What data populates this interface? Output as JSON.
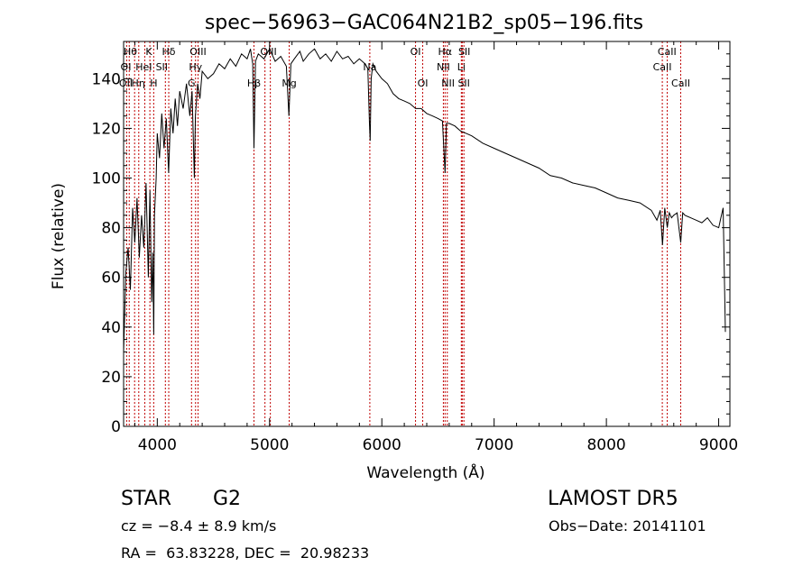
{
  "chart_data": {
    "type": "line",
    "title": "spec−56963−GAC064N21B2_sp05−196.fits",
    "xlabel": "Wavelength (Å)",
    "ylabel": "Flux (relative)",
    "xlim": [
      3700,
      9100
    ],
    "ylim": [
      0,
      155
    ],
    "xticks": [
      4000,
      5000,
      6000,
      7000,
      8000,
      9000
    ],
    "xtick_labels": [
      "4000",
      "5000",
      "6000",
      "7000",
      "8000",
      "9000"
    ],
    "yticks": [
      0,
      20,
      40,
      60,
      80,
      100,
      120,
      140
    ],
    "ytick_labels": [
      "0",
      "20",
      "40",
      "60",
      "80",
      "100",
      "120",
      "140"
    ],
    "grid": false,
    "legend": "none",
    "series": [
      {
        "x": [
          3700,
          3720,
          3740,
          3760,
          3780,
          3800,
          3820,
          3840,
          3860,
          3880,
          3900,
          3920,
          3935,
          3950,
          3960,
          3968,
          3975,
          3990,
          4000,
          4020,
          4040,
          4060,
          4080,
          4101,
          4120,
          4140,
          4160,
          4180,
          4200,
          4230,
          4260,
          4290,
          4310,
          4330,
          4340,
          4360,
          4380,
          4400,
          4450,
          4500,
          4550,
          4600,
          4650,
          4700,
          4750,
          4800,
          4830,
          4850,
          4861,
          4875,
          4900,
          4950,
          5000,
          5050,
          5100,
          5150,
          5172,
          5190,
          5220,
          5270,
          5300,
          5350,
          5400,
          5450,
          5500,
          5550,
          5600,
          5650,
          5700,
          5750,
          5800,
          5850,
          5875,
          5890,
          5896,
          5905,
          5920,
          5950,
          6000,
          6050,
          6100,
          6150,
          6200,
          6250,
          6300,
          6350,
          6400,
          6450,
          6500,
          6540,
          6563,
          6575,
          6600,
          6650,
          6700,
          6750,
          6800,
          6900,
          7000,
          7100,
          7200,
          7300,
          7400,
          7500,
          7600,
          7700,
          7800,
          7900,
          8000,
          8100,
          8200,
          8300,
          8400,
          8450,
          8480,
          8500,
          8520,
          8542,
          8560,
          8580,
          8600,
          8630,
          8662,
          8680,
          8700,
          8750,
          8800,
          8850,
          8900,
          8950,
          9000,
          9020,
          9040,
          9060
        ],
        "y": [
          30,
          62,
          72,
          55,
          88,
          74,
          92,
          68,
          85,
          72,
          98,
          60,
          95,
          50,
          70,
          37,
          85,
          100,
          118,
          108,
          126,
          112,
          124,
          102,
          128,
          118,
          132,
          121,
          135,
          128,
          138,
          125,
          135,
          100,
          125,
          138,
          132,
          143,
          140,
          142,
          146,
          144,
          148,
          145,
          150,
          148,
          152,
          146,
          112,
          147,
          150,
          148,
          152,
          147,
          149,
          145,
          125,
          146,
          148,
          151,
          147,
          150,
          152,
          148,
          150,
          147,
          151,
          148,
          149,
          146,
          148,
          146,
          144,
          122,
          115,
          140,
          146,
          143,
          140,
          138,
          134,
          132,
          131,
          130,
          128,
          128,
          126,
          125,
          124,
          123,
          102,
          122,
          122,
          121,
          119,
          118,
          117,
          114,
          112,
          110,
          108,
          106,
          104,
          101,
          100,
          98,
          97,
          96,
          94,
          92,
          91,
          90,
          87,
          83,
          87,
          73,
          88,
          80,
          86,
          84,
          85,
          86,
          74,
          86,
          85,
          84,
          83,
          82,
          84,
          81,
          80,
          84,
          88,
          38
        ]
      }
    ],
    "lines": [
      {
        "wavelength": 3727,
        "labels": [
          "OII"
        ]
      },
      {
        "wavelength": 3750,
        "labels": [
          "OII"
        ]
      },
      {
        "wavelength": 3798,
        "labels": [
          "Hθ"
        ]
      },
      {
        "wavelength": 3835,
        "labels": [
          "Hη"
        ]
      },
      {
        "wavelength": 3889,
        "labels": [
          "HeI"
        ]
      },
      {
        "wavelength": 3934,
        "labels": [
          "K"
        ]
      },
      {
        "wavelength": 3968,
        "labels": [
          "H"
        ]
      },
      {
        "wavelength": 4072,
        "labels": [
          "SII"
        ]
      },
      {
        "wavelength": 4102,
        "labels": [
          "Hδ"
        ]
      },
      {
        "wavelength": 4305,
        "labels": [
          "G"
        ]
      },
      {
        "wavelength": 4341,
        "labels": [
          "Hγ"
        ]
      },
      {
        "wavelength": 4363,
        "labels": [
          "OIII"
        ]
      },
      {
        "wavelength": 4861,
        "labels": [
          "Hβ"
        ]
      },
      {
        "wavelength": 4959,
        "labels": [
          "OIII"
        ]
      },
      {
        "wavelength": 5007,
        "labels": [
          "OIII"
        ]
      },
      {
        "wavelength": 5175,
        "labels": [
          "Mg"
        ]
      },
      {
        "wavelength": 5893,
        "labels": [
          "Na"
        ]
      },
      {
        "wavelength": 6300,
        "labels": [
          "OI"
        ]
      },
      {
        "wavelength": 6364,
        "labels": [
          "OI"
        ]
      },
      {
        "wavelength": 6548,
        "labels": [
          "NII"
        ]
      },
      {
        "wavelength": 6563,
        "labels": [
          "Hα"
        ]
      },
      {
        "wavelength": 6583,
        "labels": [
          "NII"
        ]
      },
      {
        "wavelength": 6708,
        "labels": [
          "Li"
        ]
      },
      {
        "wavelength": 6716,
        "labels": [
          "SII"
        ]
      },
      {
        "wavelength": 6731,
        "labels": [
          "SII"
        ]
      },
      {
        "wavelength": 8498,
        "labels": [
          "CaII"
        ]
      },
      {
        "wavelength": 8542,
        "labels": [
          "CaII"
        ]
      },
      {
        "wavelength": 8662,
        "labels": [
          "CaII"
        ]
      }
    ],
    "line_label_rows": [
      [
        {
          "text": "Hθ",
          "x": 3760
        },
        {
          "text": "K",
          "x": 3925
        },
        {
          "text": "Hδ",
          "x": 4102
        },
        {
          "text": "OIII",
          "x": 4363
        },
        {
          "text": "OIII",
          "x": 4990
        },
        {
          "text": "OI",
          "x": 6300
        },
        {
          "text": "Hα",
          "x": 6563
        },
        {
          "text": "SII",
          "x": 6735
        },
        {
          "text": "CaII",
          "x": 8540
        }
      ],
      [
        {
          "text": "OI",
          "x": 3720
        },
        {
          "text": "HeI",
          "x": 3880
        },
        {
          "text": "SII",
          "x": 4040
        },
        {
          "text": "Hγ",
          "x": 4341
        },
        {
          "text": "Na",
          "x": 5893
        },
        {
          "text": "NII",
          "x": 6548
        },
        {
          "text": "Li",
          "x": 6708
        },
        {
          "text": "CaII",
          "x": 8498
        }
      ],
      [
        {
          "text": "OII",
          "x": 3720
        },
        {
          "text": "Hη",
          "x": 3830
        },
        {
          "text": "H",
          "x": 3968
        },
        {
          "text": "G",
          "x": 4305
        },
        {
          "text": "Hβ",
          "x": 4861
        },
        {
          "text": "Mg",
          "x": 5175
        },
        {
          "text": "OI",
          "x": 6364
        },
        {
          "text": "NII",
          "x": 6590
        },
        {
          "text": "SII",
          "x": 6731
        },
        {
          "text": "CaII",
          "x": 8662
        }
      ]
    ]
  },
  "info": {
    "object_class": "STAR",
    "subclass": "G2",
    "survey": "LAMOST DR5",
    "cz": "cz = −8.4 ± 8.9 km/s",
    "obs_date": "Obs−Date: 20141101",
    "coords": "RA =  63.83228, DEC =  20.98233"
  }
}
